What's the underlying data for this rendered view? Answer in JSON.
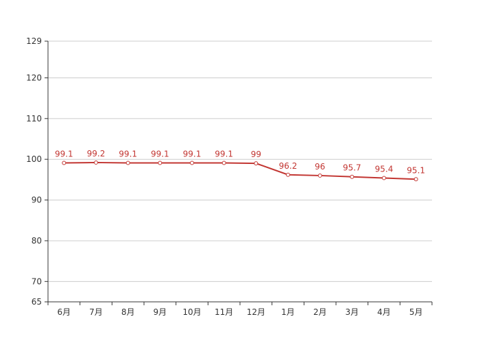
{
  "chart_data": {
    "type": "line",
    "categories": [
      "6月",
      "7月",
      "8月",
      "9月",
      "10月",
      "11月",
      "12月",
      "1月",
      "2月",
      "3月",
      "4月",
      "5月"
    ],
    "series": [
      {
        "values": [
          99.1,
          99.2,
          99.1,
          99.1,
          99.1,
          99.1,
          99,
          96.2,
          96,
          95.7,
          95.4,
          95.1
        ],
        "color": "#c23531"
      }
    ],
    "ylim": [
      65,
      129
    ],
    "yticks": [
      65,
      70,
      80,
      90,
      100,
      110,
      120,
      129
    ],
    "data_labels": true,
    "grid": true,
    "legend": "none"
  }
}
